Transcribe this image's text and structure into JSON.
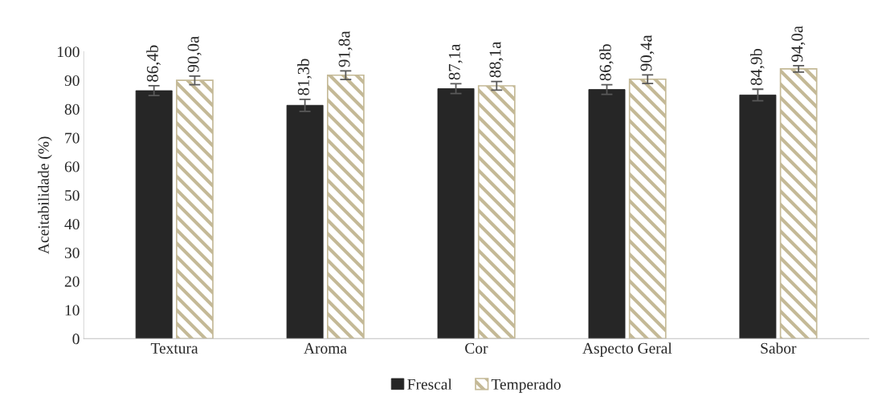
{
  "chart_data": {
    "type": "bar",
    "ylabel": "Aceitabilidade (%)",
    "categories": [
      "Textura",
      "Aroma",
      "Cor",
      "Aspecto Geral",
      "Sabor"
    ],
    "series": [
      {
        "name": "Frescal",
        "color": "#262626",
        "values": [
          86.4,
          81.3,
          87.1,
          86.8,
          84.9
        ],
        "errors": [
          1.7,
          2.1,
          1.7,
          1.7,
          2.0
        ],
        "value_labels": [
          "86,4b",
          "81,3b",
          "87,1a",
          "86,8b",
          "84,9b"
        ]
      },
      {
        "name": "Temperado",
        "color": "#c4b996",
        "values": [
          90.0,
          91.8,
          88.1,
          90.4,
          94.0
        ],
        "errors": [
          1.5,
          1.5,
          1.5,
          1.5,
          1.1
        ],
        "value_labels": [
          "90,0a",
          "91,8a",
          "88,1a",
          "90,4a",
          "94,0a"
        ]
      }
    ],
    "ylim": [
      0,
      100
    ],
    "yticks": [
      0,
      10,
      20,
      30,
      40,
      50,
      60,
      70,
      80,
      90,
      100
    ],
    "grid": false,
    "legend": "bottom"
  }
}
